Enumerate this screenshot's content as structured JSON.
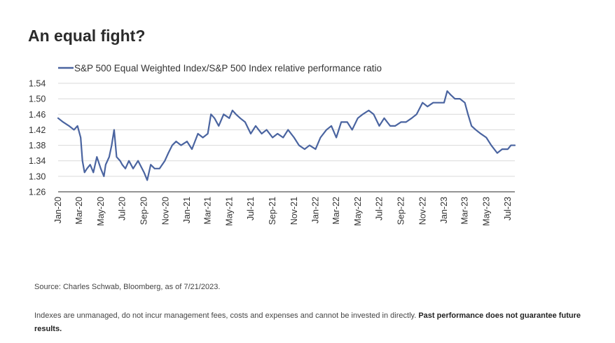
{
  "title": "An equal fight?",
  "source": "Source: Charles Schwab, Bloomberg, as of 7/21/2023.",
  "disclaimer": {
    "text": "Indexes are unmanaged, do not incur management fees, costs and expenses and cannot be invested in directly. ",
    "bold": "Past performance does not guarantee future results."
  },
  "colors": {
    "line": "#4a64a0",
    "grid": "#d9d9d9",
    "axis": "#555555"
  },
  "chart_data": {
    "type": "line",
    "title": "",
    "xlabel": "",
    "ylabel": "",
    "ylim": [
      1.26,
      1.54
    ],
    "yticks": [
      "1.54",
      "1.50",
      "1.46",
      "1.42",
      "1.38",
      "1.34",
      "1.30",
      "1.26"
    ],
    "xlim": [
      "2020-01-01",
      "2023-07-21"
    ],
    "xticks": [
      "Jan-20",
      "Mar-20",
      "May-20",
      "Jul-20",
      "Sep-20",
      "Nov-20",
      "Jan-21",
      "Mar-21",
      "May-21",
      "Jul-21",
      "Sep-21",
      "Nov-21",
      "Jan-22",
      "Mar-22",
      "May-22",
      "Jul-22",
      "Sep-22",
      "Nov-22",
      "Jan-23",
      "Mar-23",
      "May-23",
      "Jul-23"
    ],
    "grid": "horizontal",
    "legend_position": "top-left",
    "series": [
      {
        "name": "S&P 500 Equal Weighted Index/S&P 500 Index relative performance ratio",
        "x": [
          "2020-01-01",
          "2020-01-15",
          "2020-02-01",
          "2020-02-15",
          "2020-02-25",
          "2020-03-05",
          "2020-03-10",
          "2020-03-16",
          "2020-03-23",
          "2020-04-01",
          "2020-04-10",
          "2020-04-20",
          "2020-05-01",
          "2020-05-10",
          "2020-05-15",
          "2020-05-25",
          "2020-06-01",
          "2020-06-08",
          "2020-06-15",
          "2020-06-25",
          "2020-07-01",
          "2020-07-10",
          "2020-07-20",
          "2020-08-01",
          "2020-08-15",
          "2020-09-01",
          "2020-09-10",
          "2020-09-20",
          "2020-10-01",
          "2020-10-15",
          "2020-10-30",
          "2020-11-09",
          "2020-11-20",
          "2020-12-01",
          "2020-12-15",
          "2021-01-01",
          "2021-01-15",
          "2021-02-01",
          "2021-02-15",
          "2021-03-01",
          "2021-03-10",
          "2021-03-20",
          "2021-04-01",
          "2021-04-15",
          "2021-05-01",
          "2021-05-10",
          "2021-05-20",
          "2021-06-01",
          "2021-06-15",
          "2021-07-01",
          "2021-07-15",
          "2021-08-01",
          "2021-08-15",
          "2021-09-01",
          "2021-09-15",
          "2021-10-01",
          "2021-10-15",
          "2021-11-01",
          "2021-11-15",
          "2021-12-01",
          "2021-12-15",
          "2022-01-01",
          "2022-01-15",
          "2022-02-01",
          "2022-02-15",
          "2022-03-01",
          "2022-03-15",
          "2022-04-01",
          "2022-04-15",
          "2022-05-01",
          "2022-05-15",
          "2022-06-01",
          "2022-06-15",
          "2022-07-01",
          "2022-07-15",
          "2022-08-01",
          "2022-08-15",
          "2022-09-01",
          "2022-09-15",
          "2022-10-01",
          "2022-10-15",
          "2022-11-01",
          "2022-11-15",
          "2022-12-01",
          "2022-12-15",
          "2023-01-01",
          "2023-01-10",
          "2023-01-20",
          "2023-02-01",
          "2023-02-15",
          "2023-03-01",
          "2023-03-10",
          "2023-03-20",
          "2023-04-01",
          "2023-04-15",
          "2023-05-01",
          "2023-05-15",
          "2023-06-01",
          "2023-06-15",
          "2023-07-01",
          "2023-07-10",
          "2023-07-21"
        ],
        "values": [
          1.45,
          1.44,
          1.43,
          1.42,
          1.43,
          1.4,
          1.34,
          1.31,
          1.32,
          1.33,
          1.31,
          1.35,
          1.32,
          1.3,
          1.33,
          1.35,
          1.38,
          1.42,
          1.35,
          1.34,
          1.33,
          1.32,
          1.34,
          1.32,
          1.34,
          1.31,
          1.29,
          1.33,
          1.32,
          1.32,
          1.34,
          1.36,
          1.38,
          1.39,
          1.38,
          1.39,
          1.37,
          1.41,
          1.4,
          1.41,
          1.46,
          1.45,
          1.43,
          1.46,
          1.45,
          1.47,
          1.46,
          1.45,
          1.44,
          1.41,
          1.43,
          1.41,
          1.42,
          1.4,
          1.41,
          1.4,
          1.42,
          1.4,
          1.38,
          1.37,
          1.38,
          1.37,
          1.4,
          1.42,
          1.43,
          1.4,
          1.44,
          1.44,
          1.42,
          1.45,
          1.46,
          1.47,
          1.46,
          1.43,
          1.45,
          1.43,
          1.43,
          1.44,
          1.44,
          1.45,
          1.46,
          1.49,
          1.48,
          1.49,
          1.49,
          1.49,
          1.52,
          1.51,
          1.5,
          1.5,
          1.49,
          1.46,
          1.43,
          1.42,
          1.41,
          1.4,
          1.38,
          1.36,
          1.37,
          1.37,
          1.38,
          1.38
        ]
      }
    ]
  }
}
